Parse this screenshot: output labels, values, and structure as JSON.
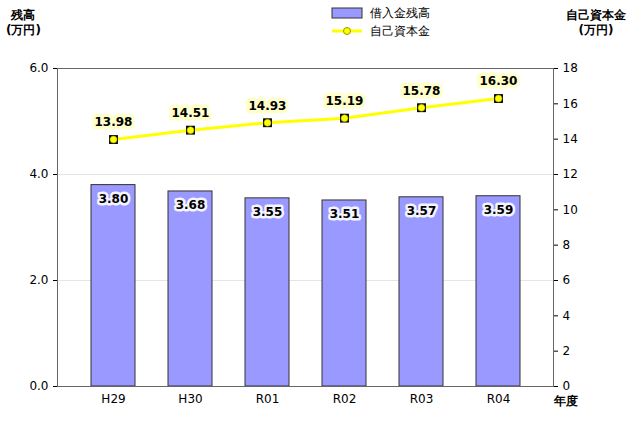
{
  "chart_data": {
    "type": "bar",
    "categories": [
      "H29",
      "H30",
      "R01",
      "R02",
      "R03",
      "R04"
    ],
    "x_label": "年度",
    "y_label": "残高\n(万円)",
    "y2_label": "自己資本金\n(万円)",
    "series": [
      {
        "name": "借入金残高",
        "type": "bar",
        "color": "#9999ff",
        "values": [
          3.8,
          3.68,
          3.55,
          3.51,
          3.57,
          3.59
        ],
        "value_labels": [
          "3.80",
          "3.68",
          "3.55",
          "3.51",
          "3.57",
          "3.59"
        ]
      },
      {
        "name": "自己資本金",
        "type": "line",
        "axis": "y2",
        "color": "#ffff00",
        "marker": "square",
        "values": [
          13.98,
          14.51,
          14.93,
          15.19,
          15.78,
          16.3
        ],
        "value_labels": [
          "13.98",
          "14.51",
          "14.93",
          "15.19",
          "15.78",
          "16.30"
        ]
      }
    ],
    "ylim": [
      0,
      6
    ],
    "yticks": [
      0,
      2,
      4,
      6
    ],
    "y2lim": [
      0,
      18
    ],
    "y2ticks": [
      0,
      2,
      4,
      6,
      8,
      10,
      12,
      14,
      16,
      18
    ],
    "grid": true,
    "data_labels": true,
    "legend": "top"
  }
}
